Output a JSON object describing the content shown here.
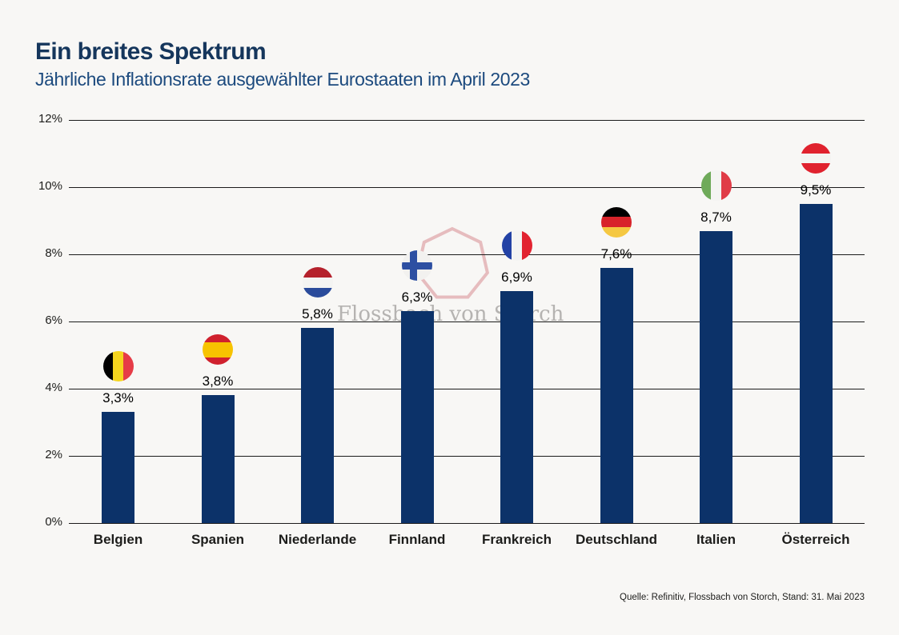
{
  "header": {
    "title": "Ein breites Spektrum",
    "subtitle": "Jährliche Inflationsrate ausgewählter Eurostaaten im April 2023"
  },
  "watermark": {
    "text": "Flossbach von Storch",
    "logo": "heptagon-outline-icon",
    "logo_color": "#e6bcbe",
    "text_color": "#b5b3b1"
  },
  "footer": {
    "source": "Quelle: Refinitiv, Flossbach von Storch, Stand: 31. Mai 2023"
  },
  "colors": {
    "background": "#f8f7f5",
    "bar": "#0c3269",
    "title": "#15365c",
    "subtitle": "#1c4a7e",
    "gridline": "#1b1b1b"
  },
  "chart_data": {
    "type": "bar",
    "title": "Ein breites Spektrum",
    "subtitle": "Jährliche Inflationsrate ausgewählter Eurostaaten im April 2023",
    "categories": [
      "Belgien",
      "Spanien",
      "Niederlande",
      "Finnland",
      "Frankreich",
      "Deutschland",
      "Italien",
      "Österreich"
    ],
    "values": [
      3.3,
      3.8,
      5.8,
      6.3,
      6.9,
      7.6,
      8.7,
      9.5
    ],
    "value_labels": [
      "3,3%",
      "3,8%",
      "5,8%",
      "6,3%",
      "6,9%",
      "7,6%",
      "8,7%",
      "9,5%"
    ],
    "xlabel": "",
    "ylabel": "",
    "ylim": [
      0,
      12
    ],
    "yticks": [
      0,
      2,
      4,
      6,
      8,
      10,
      12
    ],
    "ytick_labels": [
      "0%",
      "2%",
      "4%",
      "6%",
      "8%",
      "10%",
      "12%"
    ],
    "grid": true,
    "legend": false,
    "bar_color": "#0c3269",
    "flags": [
      {
        "slug": "belgium",
        "type": "vertical",
        "colors": [
          "#000000",
          "#f5d51e",
          "#e63c47"
        ]
      },
      {
        "slug": "spain",
        "type": "horizontal",
        "colors": [
          "#d0212e",
          "#f7c300",
          "#d0212e"
        ],
        "weights": [
          1,
          2,
          1
        ]
      },
      {
        "slug": "netherlands",
        "type": "horizontal",
        "colors": [
          "#b5212c",
          "#f4f4f2",
          "#2a4b9b"
        ]
      },
      {
        "slug": "finland",
        "type": "nordic-cross",
        "colors": [
          "#f2f1ef",
          "#2d4fa2"
        ]
      },
      {
        "slug": "france",
        "type": "vertical",
        "colors": [
          "#2342a5",
          "#f4f4f2",
          "#e22330"
        ]
      },
      {
        "slug": "germany",
        "type": "horizontal",
        "colors": [
          "#000000",
          "#d8232a",
          "#f5c842"
        ]
      },
      {
        "slug": "italy",
        "type": "vertical",
        "colors": [
          "#6faa5a",
          "#f4f4f2",
          "#e03c47"
        ]
      },
      {
        "slug": "austria",
        "type": "horizontal",
        "colors": [
          "#e0222e",
          "#f4f4f2",
          "#e0222e"
        ]
      }
    ]
  }
}
